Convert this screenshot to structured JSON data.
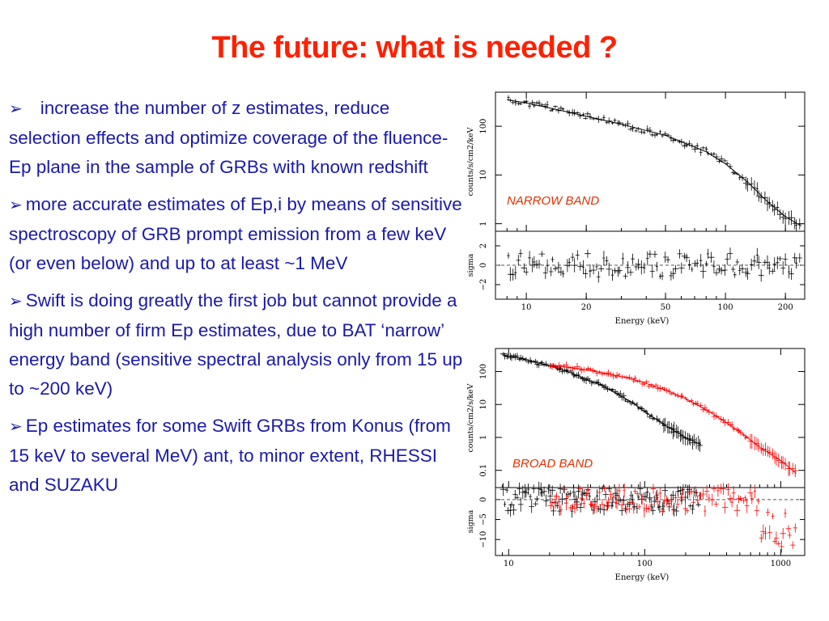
{
  "slide": {
    "title": "The future: what is needed ?",
    "bullet_icon": "arrowhead-bullet",
    "bullets": [
      "increase the number  of z estimates,  reduce selection effects and optimize coverage of the fluence-Ep plane in the sample of GRBs with known redshift",
      "more accurate estimates of Ep,i by means of sensitive spectroscopy of GRB prompt emission from a few keV (or even below) and up to at least ~1 MeV",
      "Swift is doing greatly the first job but cannot provide a high number of firm Ep estimates, due to BAT ‘narrow’ energy band (sensitive spectral analysis only from 15 up to ~200 keV)",
      "Ep estimates for some Swift GRBs from Konus (from 15 keV to several MeV) ant, to minor extent, RHESSI and SUZAKU"
    ],
    "text_color": "#1a1aaa",
    "title_color": "#ff2000"
  },
  "chart_data": [
    {
      "type": "scatter",
      "label": "NARROW BAND",
      "xlabel": "Energy (keV)",
      "x_scale": "log",
      "xlim": [
        7,
        250
      ],
      "x_ticks": [
        "10",
        "20",
        "50",
        "100",
        "200"
      ],
      "top_panel": {
        "ylabel": "counts/s/cm2/keV",
        "y_scale": "log",
        "ylim": [
          0.7,
          500
        ],
        "y_ticks": [
          "1",
          "10",
          "100"
        ],
        "series": [
          {
            "color": "#000000",
            "model": "step",
            "x": [
              8,
              10,
              15,
              20,
              30,
              50,
              80,
              100,
              130,
              160,
              200,
              240
            ],
            "y": [
              350,
              300,
              210,
              160,
              110,
              65,
              30,
              17,
              7,
              3,
              1.4,
              0.9
            ]
          }
        ]
      },
      "bottom_panel": {
        "ylabel": "sigma",
        "ylim": [
          -3.5,
          3.5
        ],
        "y_ticks": [
          "−2",
          "0",
          "2"
        ],
        "reference_line": 0
      }
    },
    {
      "type": "scatter",
      "label": "BROAD BAND",
      "xlabel": "Energy (keV)",
      "x_scale": "log",
      "xlim": [
        8,
        1500
      ],
      "x_ticks": [
        "10",
        "100",
        "1000"
      ],
      "top_panel": {
        "ylabel": "counts/cm2/s/keV",
        "y_scale": "log",
        "ylim": [
          0.03,
          500
        ],
        "y_ticks": [
          "0.1",
          "1",
          "10",
          "100"
        ],
        "series": [
          {
            "color": "#000000",
            "x": [
              9,
              12,
              15,
              20,
              30,
              50,
              80,
              100,
              150,
              200,
              260
            ],
            "y": [
              320,
              260,
              200,
              150,
              85,
              35,
              12,
              6,
              2,
              1,
              0.6
            ]
          },
          {
            "color": "#ff0000",
            "x": [
              20,
              30,
              50,
              80,
              100,
              150,
              200,
              300,
              500,
              700,
              1000,
              1300
            ],
            "y": [
              160,
              130,
              90,
              60,
              45,
              25,
              15,
              6,
              1.5,
              0.5,
              0.2,
              0.08
            ]
          }
        ]
      },
      "bottom_panel": {
        "ylabel": "sigma",
        "ylim": [
          -14,
          3
        ],
        "y_ticks": [
          "−10",
          "−5",
          "0"
        ],
        "reference_line": 0
      }
    }
  ]
}
